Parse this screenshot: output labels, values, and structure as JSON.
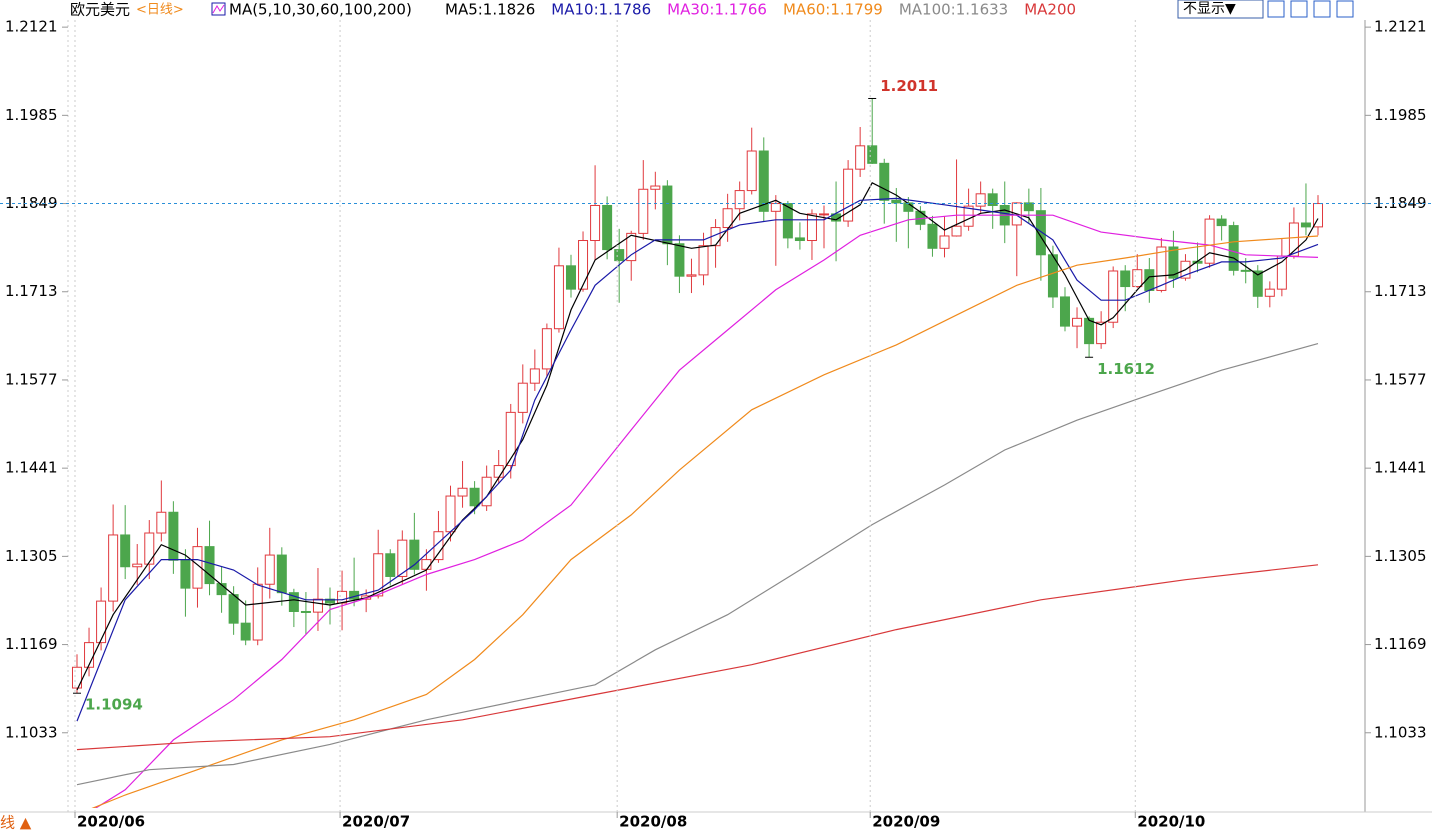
{
  "chart_data": {
    "type": "candlestick",
    "legend": {
      "symbol": "欧元美元",
      "period": "<日线>",
      "indicator": "MA(5,10,30,60,100,200)"
    },
    "buttons": {
      "hide": "不显示▼"
    },
    "corner_label": "线 ▲",
    "ylim": [
      1.0917,
      1.2132
    ],
    "yticks": [
      1.2121,
      1.1985,
      1.1849,
      1.1713,
      1.1577,
      1.1441,
      1.1305,
      1.1169,
      1.1033
    ],
    "xlim": [
      -0.58,
      106.9
    ],
    "xticks": [
      {
        "value": 0,
        "label": "2020/06"
      },
      {
        "value": 22,
        "label": "2020/07"
      },
      {
        "value": 45,
        "label": "2020/08"
      },
      {
        "value": 66,
        "label": "2020/09"
      },
      {
        "value": 88,
        "label": "2020/10"
      }
    ],
    "grid": true,
    "up_color": "#e0393e",
    "down_color": "#4ca64c",
    "last_price": 1.1849,
    "last_price_color": "#2a8fd8",
    "annotations": [
      {
        "index": 66,
        "value": 1.2011,
        "color": "#d0342c"
      },
      {
        "index": 84,
        "value": 1.1612,
        "color": "#4ca64c"
      },
      {
        "index": 0,
        "value": 1.1094,
        "color": "#4ca64c"
      }
    ],
    "ohlc": [
      [
        1.1102,
        1.1154,
        1.1094,
        1.1134
      ],
      [
        1.1134,
        1.1195,
        1.112,
        1.1172
      ],
      [
        1.1172,
        1.1257,
        1.116,
        1.1236
      ],
      [
        1.1236,
        1.1385,
        1.122,
        1.1338
      ],
      [
        1.1338,
        1.1384,
        1.127,
        1.1289
      ],
      [
        1.1289,
        1.1324,
        1.1261,
        1.1293
      ],
      [
        1.1293,
        1.1361,
        1.127,
        1.1341
      ],
      [
        1.1341,
        1.1422,
        1.1328,
        1.1373
      ],
      [
        1.1373,
        1.139,
        1.1278,
        1.1299
      ],
      [
        1.1299,
        1.1316,
        1.1212,
        1.1256
      ],
      [
        1.1256,
        1.1349,
        1.1226,
        1.132
      ],
      [
        1.132,
        1.136,
        1.1245,
        1.1263
      ],
      [
        1.1263,
        1.1289,
        1.1218,
        1.1246
      ],
      [
        1.1246,
        1.1259,
        1.1184,
        1.1202
      ],
      [
        1.1202,
        1.1237,
        1.1168,
        1.1176
      ],
      [
        1.1176,
        1.1288,
        1.1168,
        1.1262
      ],
      [
        1.1262,
        1.1349,
        1.124,
        1.1307
      ],
      [
        1.1307,
        1.1319,
        1.1229,
        1.1249
      ],
      [
        1.1249,
        1.1255,
        1.1196,
        1.122
      ],
      [
        1.122,
        1.125,
        1.1185,
        1.1219
      ],
      [
        1.1219,
        1.1287,
        1.119,
        1.1239
      ],
      [
        1.1239,
        1.1257,
        1.12,
        1.1233
      ],
      [
        1.1233,
        1.1283,
        1.1191,
        1.1251
      ],
      [
        1.1251,
        1.1303,
        1.1228,
        1.1239
      ],
      [
        1.1239,
        1.1254,
        1.1219,
        1.1244
      ],
      [
        1.1244,
        1.1346,
        1.124,
        1.1309
      ],
      [
        1.1309,
        1.1316,
        1.126,
        1.1274
      ],
      [
        1.1274,
        1.1345,
        1.1262,
        1.133
      ],
      [
        1.133,
        1.1372,
        1.1277,
        1.1285
      ],
      [
        1.1285,
        1.1316,
        1.1252,
        1.13
      ],
      [
        1.13,
        1.1375,
        1.1295,
        1.1343
      ],
      [
        1.1343,
        1.1414,
        1.1328,
        1.1398
      ],
      [
        1.1398,
        1.1452,
        1.138,
        1.141
      ],
      [
        1.141,
        1.1421,
        1.137,
        1.1383
      ],
      [
        1.1383,
        1.1445,
        1.1375,
        1.1427
      ],
      [
        1.1427,
        1.1469,
        1.1417,
        1.1445
      ],
      [
        1.1445,
        1.154,
        1.1425,
        1.1527
      ],
      [
        1.1527,
        1.1601,
        1.151,
        1.1572
      ],
      [
        1.1572,
        1.1624,
        1.156,
        1.1594
      ],
      [
        1.1594,
        1.1664,
        1.1582,
        1.1656
      ],
      [
        1.1656,
        1.1781,
        1.165,
        1.1753
      ],
      [
        1.1753,
        1.177,
        1.1704,
        1.1717
      ],
      [
        1.1717,
        1.1806,
        1.1713,
        1.1792
      ],
      [
        1.1792,
        1.1908,
        1.1762,
        1.1846
      ],
      [
        1.1846,
        1.186,
        1.1763,
        1.1778
      ],
      [
        1.1778,
        1.181,
        1.1696,
        1.1761
      ],
      [
        1.1761,
        1.1807,
        1.173,
        1.1803
      ],
      [
        1.1803,
        1.1916,
        1.1793,
        1.1871
      ],
      [
        1.1871,
        1.1898,
        1.184,
        1.1876
      ],
      [
        1.1876,
        1.1885,
        1.1754,
        1.1787
      ],
      [
        1.1787,
        1.18,
        1.1711,
        1.1737
      ],
      [
        1.1737,
        1.1764,
        1.1711,
        1.1739
      ],
      [
        1.1739,
        1.1804,
        1.1723,
        1.1784
      ],
      [
        1.1784,
        1.1825,
        1.175,
        1.1812
      ],
      [
        1.1812,
        1.1864,
        1.179,
        1.1841
      ],
      [
        1.1841,
        1.1883,
        1.1823,
        1.1869
      ],
      [
        1.1869,
        1.1966,
        1.1863,
        1.193
      ],
      [
        1.193,
        1.1951,
        1.1822,
        1.1837
      ],
      [
        1.1837,
        1.1862,
        1.1753,
        1.1849
      ],
      [
        1.1849,
        1.1853,
        1.178,
        1.1796
      ],
      [
        1.1796,
        1.182,
        1.1778,
        1.1792
      ],
      [
        1.1792,
        1.184,
        1.1762,
        1.1833
      ],
      [
        1.1833,
        1.1846,
        1.178,
        1.1833
      ],
      [
        1.1833,
        1.1883,
        1.176,
        1.1822
      ],
      [
        1.1822,
        1.1916,
        1.1813,
        1.1902
      ],
      [
        1.1902,
        1.1967,
        1.189,
        1.1938
      ],
      [
        1.1938,
        1.2011,
        1.191,
        1.1911
      ],
      [
        1.1911,
        1.1918,
        1.1818,
        1.1854
      ],
      [
        1.1854,
        1.1873,
        1.179,
        1.185
      ],
      [
        1.185,
        1.1859,
        1.178,
        1.1837
      ],
      [
        1.1837,
        1.1845,
        1.1808,
        1.1817
      ],
      [
        1.1817,
        1.183,
        1.1767,
        1.178
      ],
      [
        1.178,
        1.1829,
        1.1766,
        1.1799
      ],
      [
        1.1799,
        1.1917,
        1.1798,
        1.1814
      ],
      [
        1.1814,
        1.1872,
        1.1807,
        1.1845
      ],
      [
        1.1845,
        1.1883,
        1.1835,
        1.1864
      ],
      [
        1.1864,
        1.1872,
        1.181,
        1.1846
      ],
      [
        1.1846,
        1.1883,
        1.1788,
        1.1816
      ],
      [
        1.1816,
        1.1851,
        1.1737,
        1.185
      ],
      [
        1.185,
        1.1872,
        1.1818,
        1.1838
      ],
      [
        1.1838,
        1.1873,
        1.173,
        1.177
      ],
      [
        1.177,
        1.1784,
        1.1688,
        1.1705
      ],
      [
        1.1705,
        1.172,
        1.1652,
        1.166
      ],
      [
        1.166,
        1.1689,
        1.1626,
        1.1672
      ],
      [
        1.1672,
        1.1675,
        1.1612,
        1.1633
      ],
      [
        1.1633,
        1.1683,
        1.1625,
        1.1666
      ],
      [
        1.1666,
        1.1752,
        1.1657,
        1.1745
      ],
      [
        1.1745,
        1.1754,
        1.1683,
        1.1721
      ],
      [
        1.1721,
        1.1771,
        1.1719,
        1.1747
      ],
      [
        1.1747,
        1.1765,
        1.1696,
        1.1715
      ],
      [
        1.1715,
        1.1796,
        1.1712,
        1.1782
      ],
      [
        1.1782,
        1.1807,
        1.1719,
        1.1734
      ],
      [
        1.1734,
        1.1771,
        1.173,
        1.176
      ],
      [
        1.176,
        1.1789,
        1.1743,
        1.1757
      ],
      [
        1.1757,
        1.1831,
        1.175,
        1.1825
      ],
      [
        1.1825,
        1.1831,
        1.1792,
        1.1815
      ],
      [
        1.1815,
        1.1821,
        1.1738,
        1.1746
      ],
      [
        1.1746,
        1.1765,
        1.1726,
        1.1745
      ],
      [
        1.1745,
        1.1754,
        1.1688,
        1.1706
      ],
      [
        1.1706,
        1.1729,
        1.1689,
        1.1717
      ],
      [
        1.1717,
        1.1795,
        1.1706,
        1.1768
      ],
      [
        1.1768,
        1.1843,
        1.1764,
        1.1819
      ],
      [
        1.1819,
        1.188,
        1.18,
        1.1813
      ],
      [
        1.1813,
        1.1862,
        1.18,
        1.1849
      ]
    ],
    "series": [
      {
        "name": "MA5:1.1826",
        "color": "#000000",
        "x": [
          0,
          3,
          7,
          9,
          10,
          14,
          18,
          21,
          24,
          29,
          32,
          34,
          37,
          39,
          41,
          43,
          46,
          51,
          53,
          55,
          58,
          60,
          63,
          65,
          66,
          68,
          70,
          72,
          75,
          77,
          79,
          82,
          84,
          85,
          86,
          88,
          89,
          91,
          92,
          94,
          96,
          98,
          100,
          102,
          103
        ],
        "values": [
          1.1099,
          1.1215,
          1.1323,
          1.1307,
          1.1292,
          1.123,
          1.1238,
          1.123,
          1.1241,
          1.1284,
          1.1361,
          1.1397,
          1.1485,
          1.1569,
          1.1685,
          1.1762,
          1.18,
          1.178,
          1.1785,
          1.1834,
          1.1854,
          1.1834,
          1.1824,
          1.1847,
          1.1881,
          1.1862,
          1.1836,
          1.1808,
          1.1834,
          1.1839,
          1.1827,
          1.1739,
          1.1669,
          1.1662,
          1.1673,
          1.1716,
          1.1736,
          1.1739,
          1.1747,
          1.1773,
          1.1765,
          1.1739,
          1.1759,
          1.1793,
          1.1826
        ]
      },
      {
        "name": "MA10:1.1786",
        "color": "#1a1aa8",
        "x": [
          0,
          4,
          7,
          10,
          13,
          15,
          19,
          22,
          25,
          28,
          33,
          36,
          38,
          41,
          43,
          46,
          48,
          52,
          55,
          58,
          62,
          65,
          68,
          72,
          75,
          78,
          81,
          83,
          85,
          87,
          90,
          92,
          95,
          97,
          100,
          103
        ],
        "values": [
          1.1051,
          1.1238,
          1.13,
          1.13,
          1.1284,
          1.1261,
          1.1238,
          1.1238,
          1.1253,
          1.1292,
          1.1377,
          1.1438,
          1.1546,
          1.1654,
          1.1723,
          1.177,
          1.1793,
          1.1793,
          1.1816,
          1.1824,
          1.1824,
          1.1854,
          1.1857,
          1.1847,
          1.1839,
          1.1831,
          1.1793,
          1.1731,
          1.17,
          1.17,
          1.1723,
          1.1739,
          1.1759,
          1.1759,
          1.1765,
          1.1786
        ]
      },
      {
        "name": "MA30:1.1766",
        "color": "#e020e0",
        "x": [
          0,
          4,
          8,
          13,
          17,
          21,
          25,
          29,
          33,
          37,
          41,
          46,
          50,
          54,
          58,
          62,
          65,
          69,
          73,
          77,
          81,
          85,
          90,
          94,
          97,
          103
        ],
        "values": [
          1.0899,
          1.0945,
          1.1022,
          1.1084,
          1.1146,
          1.1223,
          1.1246,
          1.1277,
          1.13,
          1.133,
          1.1384,
          1.15,
          1.1592,
          1.1654,
          1.1716,
          1.1762,
          1.18,
          1.1824,
          1.1831,
          1.1831,
          1.1831,
          1.1805,
          1.1793,
          1.1785,
          1.177,
          1.1766
        ]
      },
      {
        "name": "MA60:1.1799",
        "color": "#f08a1c",
        "x": [
          0,
          4,
          10,
          17,
          23,
          29,
          33,
          37,
          41,
          46,
          50,
          56,
          62,
          68,
          73,
          78,
          83,
          87,
          91,
          96,
          103
        ],
        "values": [
          1.0907,
          1.0937,
          1.0976,
          1.1022,
          1.1053,
          1.1092,
          1.1146,
          1.1215,
          1.13,
          1.1369,
          1.1438,
          1.1531,
          1.1585,
          1.1631,
          1.1677,
          1.1723,
          1.1754,
          1.1765,
          1.1777,
          1.179,
          1.1799
        ]
      },
      {
        "name": "MA100:1.1633",
        "color": "#8a8a8a",
        "x": [
          0,
          6,
          13,
          21,
          29,
          37,
          43,
          48,
          54,
          60,
          66,
          72,
          77,
          83,
          89,
          95,
          103
        ],
        "values": [
          1.0953,
          1.0976,
          1.0984,
          1.1015,
          1.1053,
          1.1084,
          1.1107,
          1.1161,
          1.1215,
          1.1284,
          1.1354,
          1.1415,
          1.1469,
          1.1515,
          1.1554,
          1.1592,
          1.1633
        ]
      },
      {
        "name": "MA200",
        "color": "#d8383a",
        "x": [
          0,
          10,
          21,
          32,
          43,
          56,
          68,
          80,
          92,
          103
        ],
        "values": [
          1.1007,
          1.1019,
          1.1027,
          1.1053,
          1.1092,
          1.1138,
          1.1192,
          1.1238,
          1.1269,
          1.1292
        ]
      }
    ]
  }
}
